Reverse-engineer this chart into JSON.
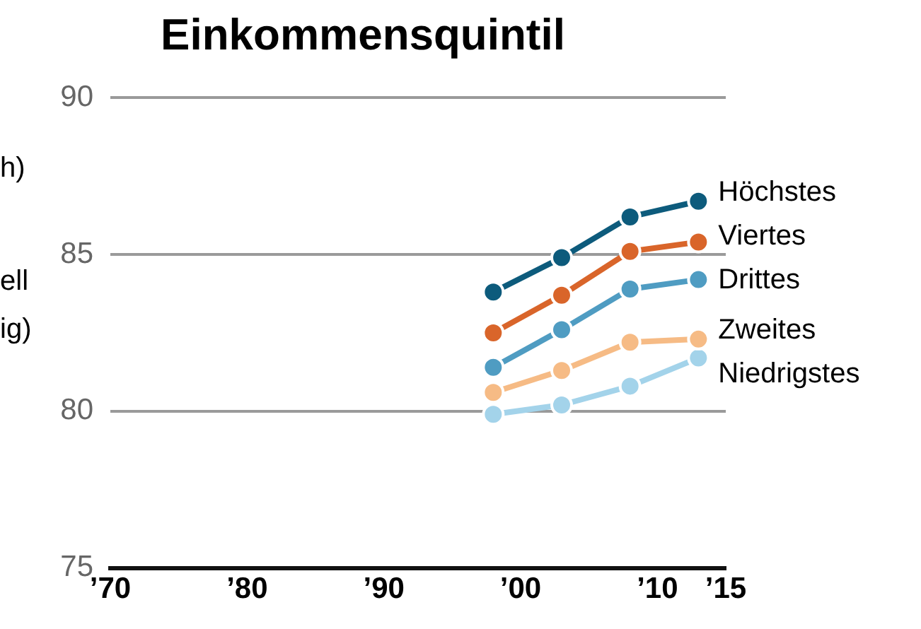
{
  "chart_data": {
    "type": "line",
    "title": "Einkommensquintil",
    "annotations": [
      "h)",
      "ell",
      "ig)"
    ],
    "x": [
      1998,
      2003,
      2008,
      2013
    ],
    "series": [
      {
        "name": "Höchstes",
        "color": "#0d5b7c",
        "values": [
          83.8,
          84.9,
          86.2,
          86.7
        ]
      },
      {
        "name": "Viertes",
        "color": "#d9652a",
        "values": [
          82.5,
          83.7,
          85.1,
          85.4
        ]
      },
      {
        "name": "Drittes",
        "color": "#4f9cc2",
        "values": [
          81.4,
          82.6,
          83.9,
          84.2
        ]
      },
      {
        "name": "Zweites",
        "color": "#f6bb85",
        "values": [
          80.6,
          81.3,
          82.2,
          82.3
        ]
      },
      {
        "name": "Niedrigstes",
        "color": "#a3d3ea",
        "values": [
          79.9,
          80.2,
          80.8,
          81.7
        ]
      }
    ],
    "xlim": [
      1970,
      2015
    ],
    "xticks": [
      {
        "value": 1970,
        "label": "’70"
      },
      {
        "value": 1980,
        "label": "’80"
      },
      {
        "value": 1990,
        "label": "’90"
      },
      {
        "value": 2000,
        "label": "’00"
      },
      {
        "value": 2010,
        "label": "’10"
      },
      {
        "value": 2015,
        "label": "’15"
      }
    ],
    "ylim": [
      75,
      90
    ],
    "yticks": [
      75,
      80,
      85,
      90
    ],
    "grid": "y",
    "legend": false,
    "marker": "circle",
    "line_style": "solid"
  }
}
